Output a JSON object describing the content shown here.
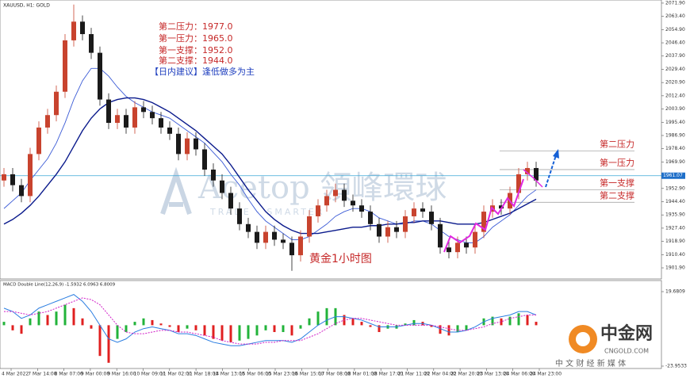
{
  "chart_data": {
    "type": "candlestick",
    "title": "XAUUSD, H1: GOLD",
    "notes": [
      "第二压力：1977.0",
      "第一压力：1965.0",
      "第一支撑：1952.0",
      "第二支撑：1944.0"
    ],
    "advice": "【日内建议】逢低做多为主",
    "chart_label": "黄金1小时图",
    "watermark": {
      "brand": "Acetop 領峰環球",
      "tagline": "TRADE · SMARTER"
    },
    "logo": {
      "name": "中金网",
      "url": "CNGOLD.COM",
      "slogan": "中 文 财 经 新 媒 体"
    },
    "up_color": "#c8432e",
    "down_color": "#1a1a1a",
    "candles": [
      [
        1958,
        1966,
        1954,
        1962
      ],
      [
        1962,
        1966,
        1951,
        1955
      ],
      [
        1955,
        1959,
        1944,
        1948
      ],
      [
        1948,
        1979,
        1944,
        1975
      ],
      [
        1975,
        1996,
        1971,
        1992
      ],
      [
        1992,
        2004,
        1988,
        2000
      ],
      [
        2000,
        2019,
        1996,
        2015
      ],
      [
        2015,
        2052,
        2011,
        2048
      ],
      [
        2048,
        2071,
        2044,
        2060
      ],
      [
        2060,
        2064,
        2048,
        2052
      ],
      [
        2052,
        2056,
        2036,
        2040
      ],
      [
        2040,
        2044,
        2006,
        2010
      ],
      [
        2010,
        2014,
        1991,
        1995
      ],
      [
        1995,
        2004,
        1991,
        2000
      ],
      [
        2000,
        2004,
        1988,
        1992
      ],
      [
        1992,
        2009,
        1988,
        2005
      ],
      [
        2005,
        2009,
        1998,
        2002
      ],
      [
        2002,
        2006,
        1994,
        1998
      ],
      [
        1998,
        2002,
        1988,
        1992
      ],
      [
        1992,
        1996,
        1984,
        1988
      ],
      [
        1988,
        1992,
        1971,
        1975
      ],
      [
        1975,
        1989,
        1971,
        1985
      ],
      [
        1985,
        1989,
        1974,
        1978
      ],
      [
        1978,
        1982,
        1961,
        1965
      ],
      [
        1965,
        1969,
        1954,
        1958
      ],
      [
        1958,
        1962,
        1946,
        1950
      ],
      [
        1950,
        1954,
        1936,
        1940
      ],
      [
        1940,
        1944,
        1926,
        1930
      ],
      [
        1930,
        1934,
        1921,
        1925
      ],
      [
        1925,
        1929,
        1914,
        1918
      ],
      [
        1918,
        1929,
        1914,
        1925
      ],
      [
        1925,
        1929,
        1916,
        1920
      ],
      [
        1920,
        1924,
        1914,
        1918
      ],
      [
        1918,
        1922,
        1900,
        1910
      ],
      [
        1910,
        1926,
        1906,
        1922
      ],
      [
        1922,
        1939,
        1918,
        1935
      ],
      [
        1935,
        1946,
        1931,
        1942
      ],
      [
        1942,
        1952,
        1938,
        1948
      ],
      [
        1948,
        1956,
        1944,
        1952
      ],
      [
        1952,
        1956,
        1941,
        1945
      ],
      [
        1945,
        1949,
        1938,
        1942
      ],
      [
        1942,
        1946,
        1934,
        1938
      ],
      [
        1938,
        1942,
        1926,
        1930
      ],
      [
        1930,
        1934,
        1918,
        1922
      ],
      [
        1922,
        1932,
        1918,
        1928
      ],
      [
        1928,
        1932,
        1921,
        1925
      ],
      [
        1925,
        1939,
        1921,
        1935
      ],
      [
        1935,
        1944,
        1931,
        1940
      ],
      [
        1940,
        1944,
        1934,
        1938
      ],
      [
        1938,
        1942,
        1926,
        1930
      ],
      [
        1930,
        1934,
        1911,
        1915
      ],
      [
        1915,
        1919,
        1908,
        1912
      ],
      [
        1912,
        1922,
        1908,
        1918
      ],
      [
        1918,
        1922,
        1911,
        1915
      ],
      [
        1915,
        1929,
        1911,
        1925
      ],
      [
        1925,
        1942,
        1921,
        1938
      ],
      [
        1938,
        1946,
        1934,
        1942
      ],
      [
        1942,
        1946,
        1936,
        1940
      ],
      [
        1940,
        1954,
        1936,
        1950
      ],
      [
        1950,
        1966,
        1946,
        1962
      ],
      [
        1962,
        1970,
        1958,
        1966
      ],
      [
        1966,
        1970,
        1954,
        1958
      ]
    ],
    "ma_lines": [
      {
        "color": "#3b5bd6",
        "values": [
          1940,
          1945,
          1950,
          1958,
          1965,
          1972,
          1982,
          1995,
          2010,
          2022,
          2030,
          2030,
          2025,
          2018,
          2012,
          2008,
          2005,
          2002,
          2000,
          1998,
          1994,
          1990,
          1986,
          1982,
          1976,
          1970,
          1962,
          1955,
          1946,
          1938,
          1932,
          1928,
          1924,
          1920,
          1920,
          1922,
          1926,
          1930,
          1935,
          1938,
          1940,
          1940,
          1938,
          1934,
          1932,
          1930,
          1930,
          1932,
          1932,
          1930,
          1926,
          1922,
          1920,
          1918,
          1918,
          1922,
          1928,
          1932,
          1936,
          1942,
          1948,
          1952
        ]
      },
      {
        "color": "#0a1a8c",
        "values": [
          1930,
          1933,
          1937,
          1942,
          1948,
          1955,
          1962,
          1970,
          1980,
          1990,
          1998,
          2004,
          2008,
          2010,
          2011,
          2011,
          2010,
          2008,
          2005,
          2002,
          1998,
          1994,
          1990,
          1985,
          1980,
          1975,
          1968,
          1960,
          1952,
          1945,
          1938,
          1933,
          1929,
          1926,
          1924,
          1924,
          1924,
          1925,
          1926,
          1927,
          1928,
          1928,
          1929,
          1929,
          1930,
          1930,
          1931,
          1931,
          1932,
          1932,
          1932,
          1931,
          1930,
          1930,
          1930,
          1931,
          1933,
          1935,
          1937,
          1940,
          1943,
          1946
        ]
      }
    ],
    "ylim": [
      1895.8,
      2073.9
    ],
    "yticks": [
      {
        "value": 2071.9,
        "label": "2071.90"
      },
      {
        "value": 2063.4,
        "label": "2063.40"
      },
      {
        "value": 2054.9,
        "label": "2054.90"
      },
      {
        "value": 2046.4,
        "label": "2046.40"
      },
      {
        "value": 2037.9,
        "label": "2037.90"
      },
      {
        "value": 2029.4,
        "label": "2029.40"
      },
      {
        "value": 2020.9,
        "label": "2020.90"
      },
      {
        "value": 2012.4,
        "label": "2012.40"
      },
      {
        "value": 2003.9,
        "label": "2003.90"
      },
      {
        "value": 1995.4,
        "label": "1995.40"
      },
      {
        "value": 1986.9,
        "label": "1986.90"
      },
      {
        "value": 1978.4,
        "label": "1978.40"
      },
      {
        "value": 1969.9,
        "label": "1969.90"
      },
      {
        "value": 1952.9,
        "label": "1952.90"
      },
      {
        "value": 1944.4,
        "label": "1944.40"
      },
      {
        "value": 1935.9,
        "label": "1935.90"
      },
      {
        "value": 1927.4,
        "label": "1927.40"
      },
      {
        "value": 1918.9,
        "label": "1918.90"
      },
      {
        "value": 1910.4,
        "label": "1910.40"
      },
      {
        "value": 1901.9,
        "label": "1901.90"
      }
    ],
    "current_price": {
      "value": 1961.07,
      "label": "1961.07"
    },
    "levels": [
      {
        "label": "第二压力",
        "value": 1977
      },
      {
        "label": "第一压力",
        "value": 1965
      },
      {
        "label": "第一支撑",
        "value": 1952
      },
      {
        "label": "第二支撑",
        "value": 1944
      }
    ],
    "time_labels": [
      "4 Mar 2022",
      "7 Mar 14:00",
      "8 Mar 07:00",
      "9 Mar 00:00",
      "9 Mar 16:00",
      "10 Mar 09:00",
      "11 Mar 02:00",
      "11 Mar 18:00",
      "14 Mar 13:00",
      "15 Mar 06:00",
      "15 Mar 23:00",
      "16 Mar 15:00",
      "17 Mar 08:00",
      "18 Mar 01:00",
      "18 Mar 17:00",
      "21 Mar 11:00",
      "22 Mar 04:00",
      "22 Mar 20:00",
      "23 Mar 13:00",
      "24 Mar 06:00",
      "24 Mar 23:00"
    ],
    "macd": {
      "title": "MACD Double Line(12,26,9) -1.5932 6.0963 6.8009",
      "ylim": [
        -23.9533,
        19.6809
      ],
      "yticks": [
        19.6809,
        -23.9533
      ],
      "rise_color": "#22b33a",
      "fall_color": "#e02020",
      "macd_color": "#2a7de1",
      "signal_color": "#d11fc8",
      "histogram": [
        2,
        -3,
        -5,
        4,
        8,
        6,
        8,
        12,
        10,
        4,
        -2,
        -18,
        -22,
        -8,
        -4,
        2,
        4,
        3,
        1,
        -1,
        -4,
        -2,
        -3,
        -6,
        -8,
        -9,
        -10,
        -9,
        -8,
        -6,
        -3,
        -4,
        -4,
        -6,
        -2,
        4,
        8,
        10,
        10,
        6,
        4,
        2,
        -1,
        -4,
        -2,
        -2,
        1,
        3,
        2,
        -1,
        -5,
        -6,
        -4,
        -3,
        0,
        4,
        5,
        4,
        5,
        7,
        6,
        2
      ],
      "macd_line": [
        10,
        8,
        4,
        6,
        10,
        12,
        14,
        16,
        18,
        14,
        8,
        0,
        -8,
        -10,
        -8,
        -4,
        -2,
        -1,
        -2,
        -3,
        -5,
        -5,
        -6,
        -8,
        -10,
        -11,
        -12,
        -12,
        -11,
        -10,
        -9,
        -9,
        -9,
        -10,
        -8,
        -4,
        0,
        3,
        5,
        5,
        4,
        3,
        1,
        -1,
        -1,
        -1,
        0,
        1,
        1,
        0,
        -2,
        -4,
        -4,
        -3,
        -1,
        2,
        4,
        5,
        6,
        8,
        8,
        6
      ],
      "signal_line": [
        8,
        8,
        7,
        6,
        7,
        8,
        10,
        12,
        14,
        16,
        15,
        12,
        6,
        0,
        -4,
        -5,
        -5,
        -4,
        -3,
        -3,
        -4,
        -4,
        -5,
        -6,
        -7,
        -9,
        -10,
        -11,
        -11,
        -11,
        -10,
        -10,
        -9,
        -9,
        -9,
        -7,
        -5,
        -2,
        1,
        3,
        4,
        4,
        3,
        2,
        1,
        0,
        0,
        0,
        0,
        0,
        -1,
        -2,
        -3,
        -3,
        -2,
        -1,
        1,
        2,
        4,
        5,
        6,
        6
      ]
    }
  }
}
